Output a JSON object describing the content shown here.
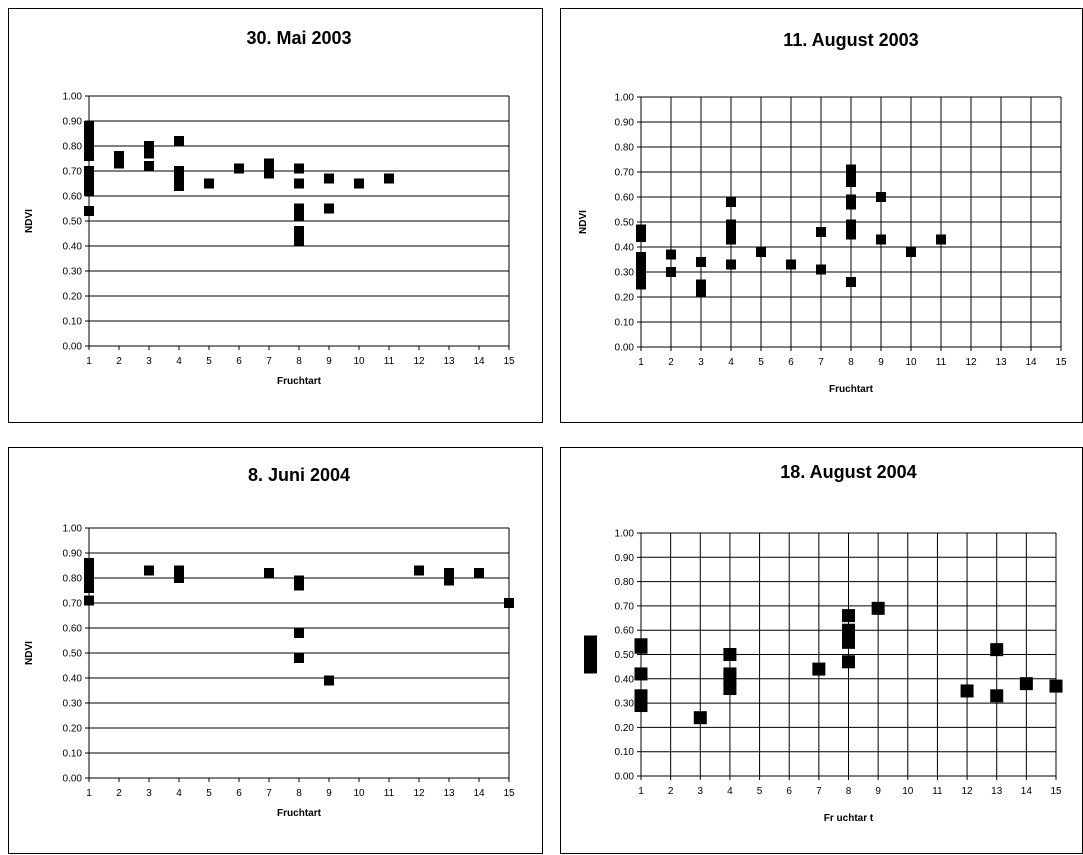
{
  "chart_data": [
    {
      "type": "scatter",
      "title": "30. Mai 2003",
      "xlabel": "Fruchtart",
      "ylabel": "NDVI",
      "xlim": [
        1,
        15
      ],
      "ylim": [
        0,
        1
      ],
      "xticks": [
        1,
        2,
        3,
        4,
        5,
        6,
        7,
        8,
        9,
        10,
        11,
        12,
        13,
        14,
        15
      ],
      "yticks": [
        0,
        0.1,
        0.2,
        0.3,
        0.4,
        0.5,
        0.6,
        0.7,
        0.8,
        0.9,
        1.0
      ],
      "grid": "horizontal",
      "points": [
        [
          1,
          0.88
        ],
        [
          1,
          0.86
        ],
        [
          1,
          0.84
        ],
        [
          1,
          0.82
        ],
        [
          1,
          0.8
        ],
        [
          1,
          0.76
        ],
        [
          1,
          0.7
        ],
        [
          1,
          0.68
        ],
        [
          1,
          0.66
        ],
        [
          1,
          0.64
        ],
        [
          1,
          0.62
        ],
        [
          1,
          0.54
        ],
        [
          2,
          0.76
        ],
        [
          2,
          0.73
        ],
        [
          3,
          0.8
        ],
        [
          3,
          0.77
        ],
        [
          3,
          0.72
        ],
        [
          4,
          0.82
        ],
        [
          4,
          0.7
        ],
        [
          4,
          0.68
        ],
        [
          4,
          0.64
        ],
        [
          5,
          0.65
        ],
        [
          6,
          0.71
        ],
        [
          7,
          0.73
        ],
        [
          7,
          0.69
        ],
        [
          8,
          0.71
        ],
        [
          8,
          0.65
        ],
        [
          8,
          0.55
        ],
        [
          8,
          0.52
        ],
        [
          8,
          0.46
        ],
        [
          8,
          0.42
        ],
        [
          9,
          0.67
        ],
        [
          9,
          0.55
        ],
        [
          10,
          0.65
        ],
        [
          11,
          0.67
        ]
      ]
    },
    {
      "type": "scatter",
      "title": "11. August 2003",
      "xlabel": "Fruchtart",
      "ylabel": "NDVI",
      "xlim": [
        1,
        15
      ],
      "ylim": [
        0,
        1
      ],
      "xticks": [
        1,
        2,
        3,
        4,
        5,
        6,
        7,
        8,
        9,
        10,
        11,
        12,
        13,
        14,
        15
      ],
      "yticks": [
        0,
        0.1,
        0.2,
        0.3,
        0.4,
        0.5,
        0.6,
        0.7,
        0.8,
        0.9,
        1.0
      ],
      "grid": "both",
      "points": [
        [
          1,
          0.47
        ],
        [
          1,
          0.44
        ],
        [
          1,
          0.36
        ],
        [
          1,
          0.34
        ],
        [
          1,
          0.31
        ],
        [
          1,
          0.28
        ],
        [
          1,
          0.25
        ],
        [
          2,
          0.37
        ],
        [
          2,
          0.3
        ],
        [
          3,
          0.34
        ],
        [
          3,
          0.25
        ],
        [
          3,
          0.22
        ],
        [
          4,
          0.58
        ],
        [
          4,
          0.49
        ],
        [
          4,
          0.46
        ],
        [
          4,
          0.43
        ],
        [
          4,
          0.33
        ],
        [
          5,
          0.38
        ],
        [
          6,
          0.33
        ],
        [
          7,
          0.46
        ],
        [
          7,
          0.31
        ],
        [
          8,
          0.71
        ],
        [
          8,
          0.69
        ],
        [
          8,
          0.66
        ],
        [
          8,
          0.59
        ],
        [
          8,
          0.57
        ],
        [
          8,
          0.49
        ],
        [
          8,
          0.45
        ],
        [
          8,
          0.26
        ],
        [
          9,
          0.6
        ],
        [
          9,
          0.43
        ],
        [
          10,
          0.38
        ],
        [
          11,
          0.43
        ]
      ]
    },
    {
      "type": "scatter",
      "title": "8. Juni 2004",
      "xlabel": "Fruchtart",
      "ylabel": "NDVI",
      "xlim": [
        1,
        15
      ],
      "ylim": [
        0,
        1
      ],
      "xticks": [
        1,
        2,
        3,
        4,
        5,
        6,
        7,
        8,
        9,
        10,
        11,
        12,
        13,
        14,
        15
      ],
      "yticks": [
        0,
        0.1,
        0.2,
        0.3,
        0.4,
        0.5,
        0.6,
        0.7,
        0.8,
        0.9,
        1.0
      ],
      "grid": "horizontal",
      "points": [
        [
          1,
          0.86
        ],
        [
          1,
          0.84
        ],
        [
          1,
          0.82
        ],
        [
          1,
          0.8
        ],
        [
          1,
          0.76
        ],
        [
          1,
          0.71
        ],
        [
          3,
          0.83
        ],
        [
          4,
          0.83
        ],
        [
          4,
          0.8
        ],
        [
          7,
          0.82
        ],
        [
          8,
          0.79
        ],
        [
          8,
          0.77
        ],
        [
          8,
          0.58
        ],
        [
          8,
          0.48
        ],
        [
          9,
          0.39
        ],
        [
          12,
          0.83
        ],
        [
          13,
          0.82
        ],
        [
          13,
          0.79
        ],
        [
          14,
          0.82
        ],
        [
          15,
          0.7
        ]
      ]
    },
    {
      "type": "scatter",
      "title": "18. August 2004",
      "xlabel": "Fr uchtar t",
      "ylabel": "",
      "xlim": [
        1,
        15
      ],
      "ylim": [
        0,
        1
      ],
      "xticks": [
        1,
        2,
        3,
        4,
        5,
        6,
        7,
        8,
        9,
        10,
        11,
        12,
        13,
        14,
        15
      ],
      "yticks": [
        0,
        0.1,
        0.2,
        0.3,
        0.4,
        0.5,
        0.6,
        0.7,
        0.8,
        0.9,
        1.0
      ],
      "grid": "both",
      "points": [
        [
          1,
          0.54
        ],
        [
          1,
          0.53
        ],
        [
          1,
          0.42
        ],
        [
          1,
          0.33
        ],
        [
          1,
          0.31
        ],
        [
          1,
          0.29
        ],
        [
          3,
          0.24
        ],
        [
          4,
          0.5
        ],
        [
          4,
          0.42
        ],
        [
          4,
          0.4
        ],
        [
          4,
          0.36
        ],
        [
          7,
          0.44
        ],
        [
          8,
          0.66
        ],
        [
          8,
          0.6
        ],
        [
          8,
          0.57
        ],
        [
          8,
          0.55
        ],
        [
          8,
          0.47
        ],
        [
          9,
          0.69
        ],
        [
          12,
          0.35
        ],
        [
          13,
          0.52
        ],
        [
          13,
          0.33
        ],
        [
          14,
          0.38
        ],
        [
          15,
          0.37
        ]
      ]
    }
  ]
}
